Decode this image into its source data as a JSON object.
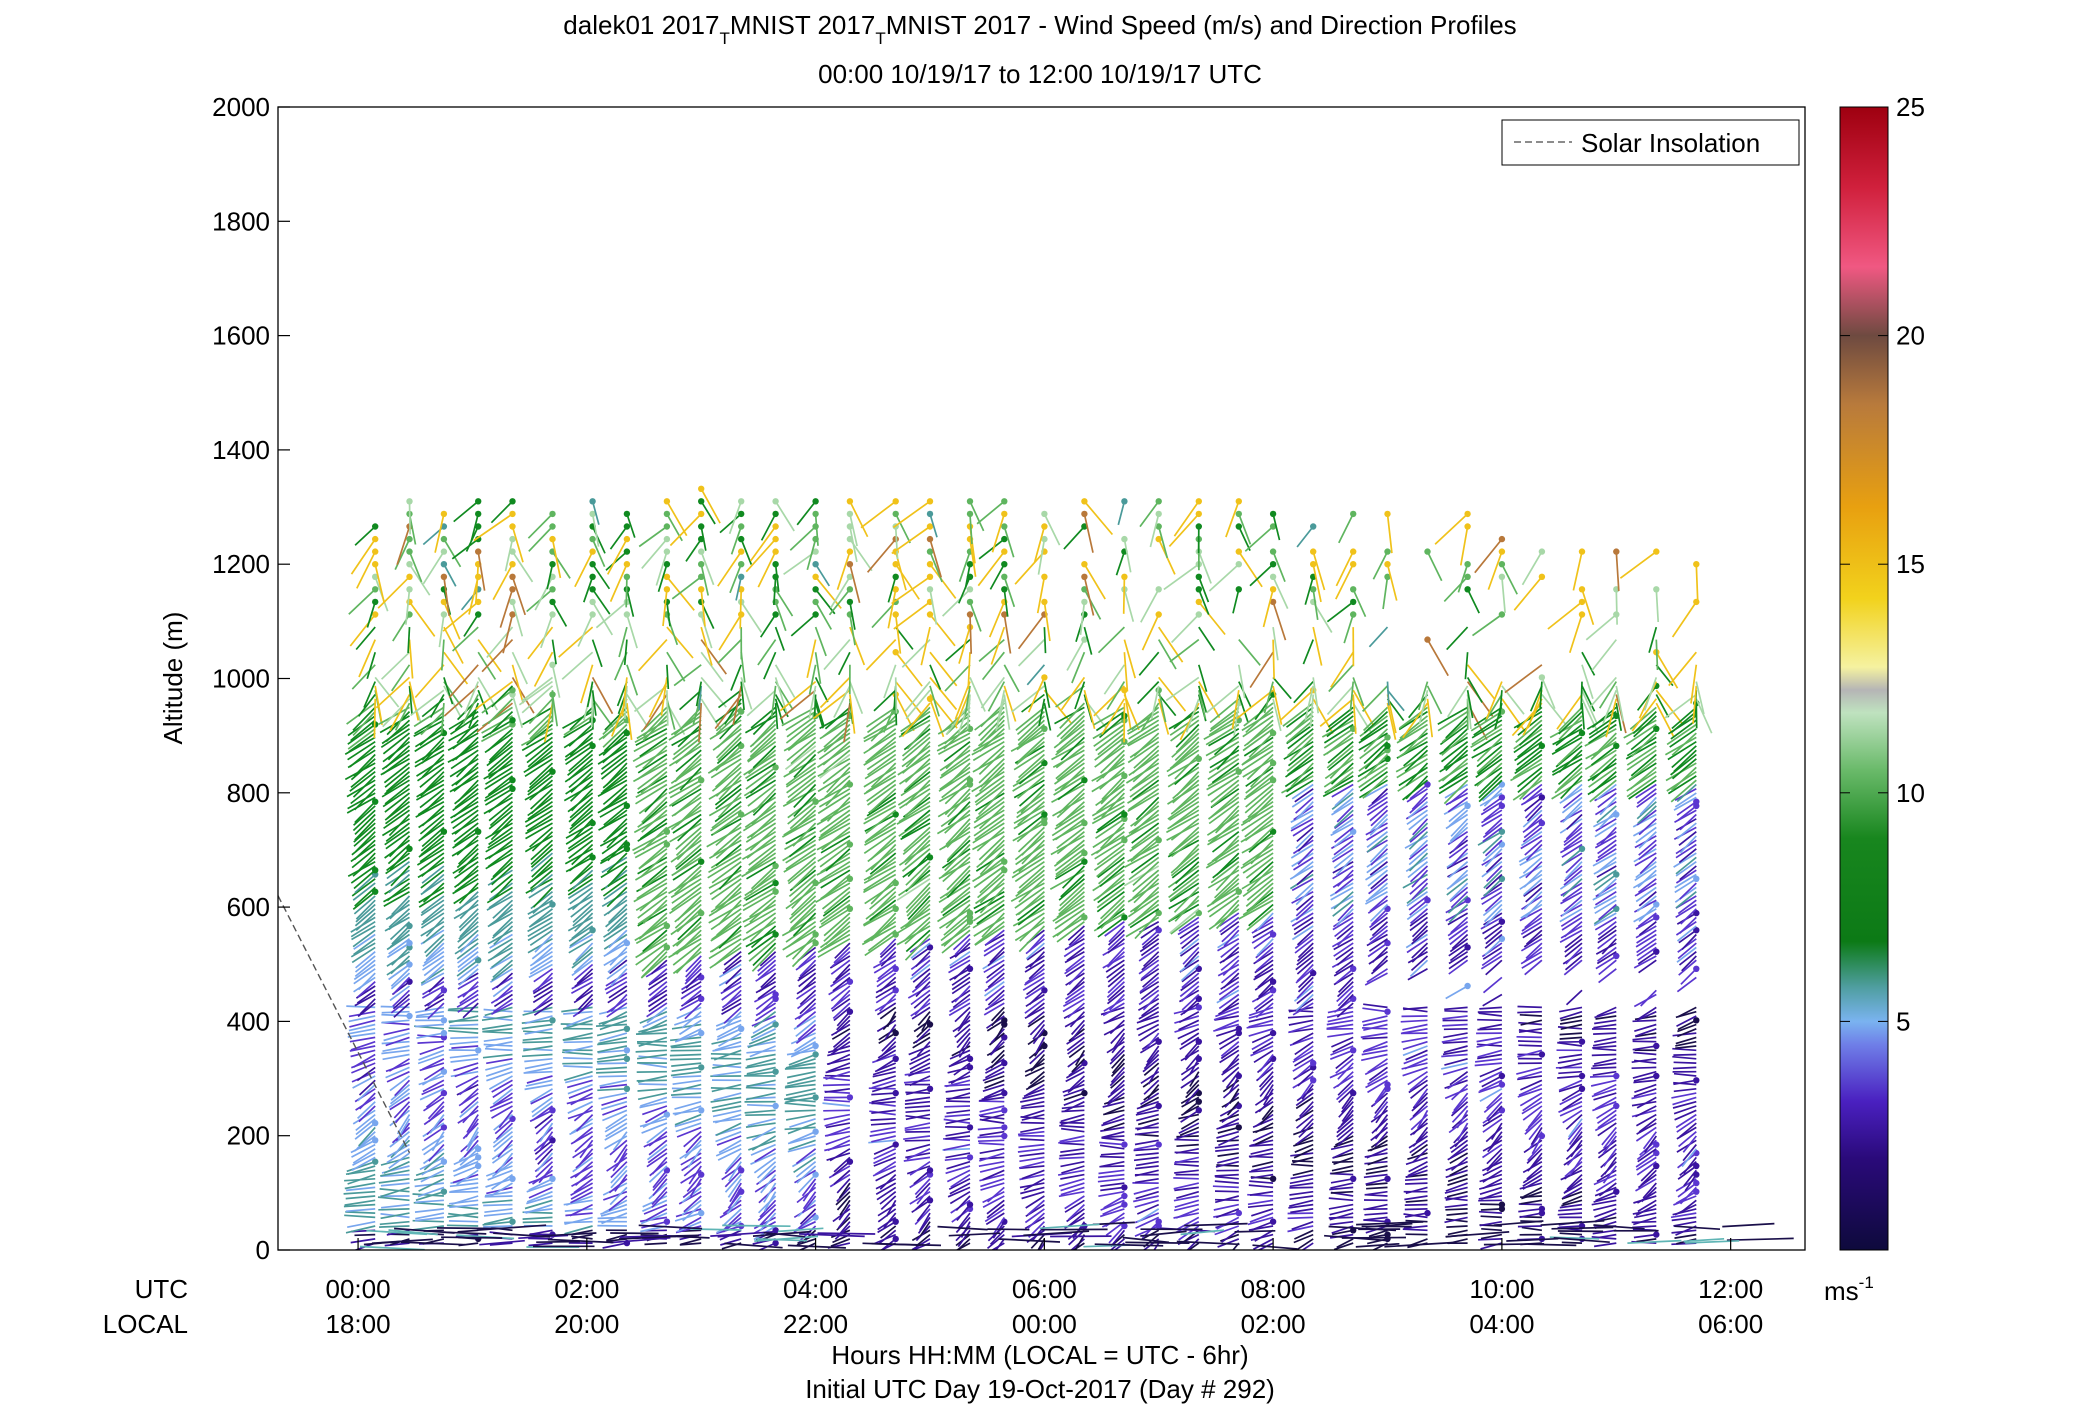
{
  "chart_data": {
    "type": "wind-barb-profile",
    "title_line1_part1": "dalek01 2017",
    "title_sub": "T",
    "title_line1_part2": "MNIST 2017",
    "title_line1_part3": "MNIST 2017 - Wind Speed (m/s) and Direction Profiles",
    "title_line2": "00:00 10/19/17 to 12:00 10/19/17  UTC",
    "ylabel": "Altitude (m)",
    "xlabel_line1": "Hours HH:MM  (LOCAL = UTC - 6hr)",
    "xlabel_line2": "Initial UTC Day 19-Oct-2017 (Day # 292)",
    "utc_row_label": "UTC",
    "local_row_label": "LOCAL",
    "ylim": [
      0,
      2000
    ],
    "y_ticks": [
      "0",
      "200",
      "400",
      "600",
      "800",
      "1000",
      "1200",
      "1400",
      "1600",
      "1800",
      "2000"
    ],
    "x_ticks_utc": [
      "00:00",
      "02:00",
      "04:00",
      "06:00",
      "08:00",
      "10:00",
      "12:00"
    ],
    "x_ticks_local": [
      "18:00",
      "20:00",
      "22:00",
      "00:00",
      "02:00",
      "04:00",
      "06:00"
    ],
    "x_tick_hours": [
      0,
      2,
      4,
      6,
      8,
      10,
      12
    ],
    "legend_entry": "Solar Insolation",
    "legend_placement": "top-right",
    "colorbar": {
      "ticks": [
        "5",
        "10",
        "15",
        "20",
        "25"
      ],
      "range": [
        0,
        25
      ],
      "unit_base": "ms",
      "unit_exp": "-1"
    },
    "solar_insolation_line": [
      [
        -0.7,
        620
      ],
      [
        0.45,
        170
      ]
    ],
    "profile_times_hours": [
      0.15,
      0.45,
      0.75,
      1.05,
      1.35,
      1.7,
      2.05,
      2.35,
      2.7,
      3.0,
      3.35,
      3.65,
      4.0,
      4.3,
      4.7,
      5.0,
      5.35,
      5.65,
      6.0,
      6.35,
      6.7,
      7.0,
      7.35,
      7.7,
      8.0,
      8.35,
      8.7,
      9.0,
      9.35,
      9.7,
      10.0,
      10.35,
      10.7,
      11.0,
      11.35,
      11.7
    ],
    "profile_tops_m": [
      1270,
      1310,
      1300,
      1310,
      1310,
      1290,
      1310,
      1300,
      1320,
      1340,
      1320,
      1330,
      1310,
      1320,
      1330,
      1330,
      1330,
      1330,
      1320,
      1320,
      1320,
      1320,
      1320,
      1320,
      1320,
      1320,
      1320,
      1300,
      1300,
      1290,
      1280,
      1260,
      1240,
      1240,
      1230,
      1200
    ]
  }
}
